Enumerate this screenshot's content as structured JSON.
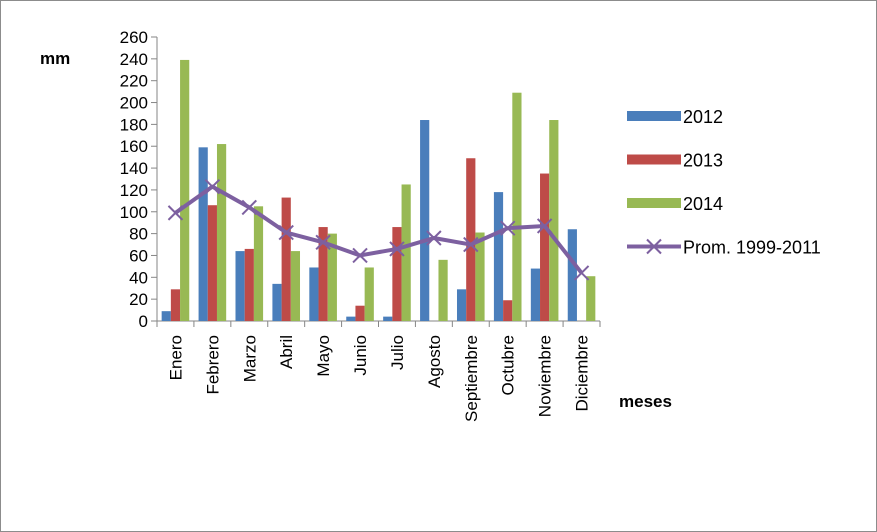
{
  "chart_data": {
    "type": "bar",
    "ylabel": "mm",
    "xlabel": "meses",
    "ylim": [
      0,
      260
    ],
    "yticks": [
      0,
      20,
      40,
      60,
      80,
      100,
      120,
      140,
      160,
      180,
      200,
      220,
      240,
      260
    ],
    "grid": false,
    "legend_position": "right",
    "categories": [
      "Enero",
      "Febrero",
      "Marzo",
      "Abril",
      "Mayo",
      "Junio",
      "Julio",
      "Agosto",
      "Septiembre",
      "Octubre",
      "Noviembre",
      "Diciembre"
    ],
    "series": [
      {
        "name": "2012",
        "type": "bar",
        "color": "#4a7ebb",
        "values": [
          9,
          159,
          64,
          34,
          49,
          4,
          4,
          184,
          29,
          118,
          48,
          84
        ]
      },
      {
        "name": "2013",
        "type": "bar",
        "color": "#be4b48",
        "values": [
          29,
          106,
          66,
          113,
          86,
          14,
          86,
          0,
          149,
          19,
          135,
          0
        ]
      },
      {
        "name": "2014",
        "type": "bar",
        "color": "#98b954",
        "values": [
          239,
          162,
          105,
          64,
          80,
          49,
          125,
          56,
          81,
          209,
          184,
          41
        ]
      },
      {
        "name": "Prom. 1999-2011",
        "type": "line",
        "color": "#7d60a0",
        "marker": "x",
        "values": [
          99,
          123,
          104,
          81,
          72,
          60,
          66,
          76,
          70,
          85,
          87,
          44
        ]
      }
    ]
  }
}
